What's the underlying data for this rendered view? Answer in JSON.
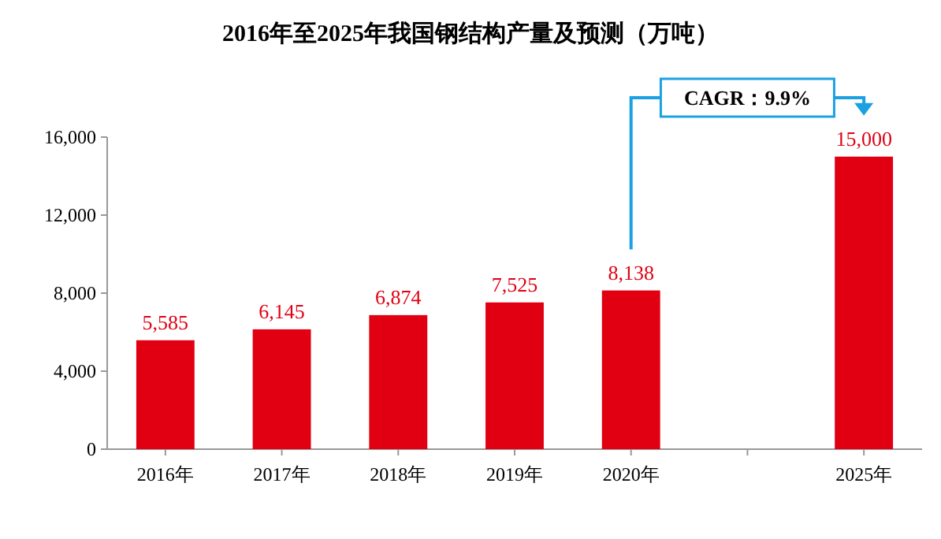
{
  "chart_data": {
    "type": "bar",
    "title": "2016年至2025年我国钢结构产量及预测（万吨）",
    "categories": [
      "2016年",
      "2017年",
      "2018年",
      "2019年",
      "2020年",
      null,
      "2025年"
    ],
    "values": [
      5585,
      6145,
      6874,
      7525,
      8138,
      null,
      15000
    ],
    "color": "#e00012",
    "ylim": [
      0,
      16000
    ],
    "yticks": [
      {
        "value": 0,
        "label": "0"
      },
      {
        "value": 4000,
        "label": "4,000"
      },
      {
        "value": 8000,
        "label": "8,000"
      },
      {
        "value": 12000,
        "label": "12,000"
      },
      {
        "value": 16000,
        "label": "16,000"
      }
    ],
    "value_labels": [
      "5,585",
      "6,145",
      "6,874",
      "7,525",
      "8,138",
      null,
      "15,000"
    ],
    "grid": false,
    "annotations": [
      "CAGR：9.9%"
    ]
  }
}
